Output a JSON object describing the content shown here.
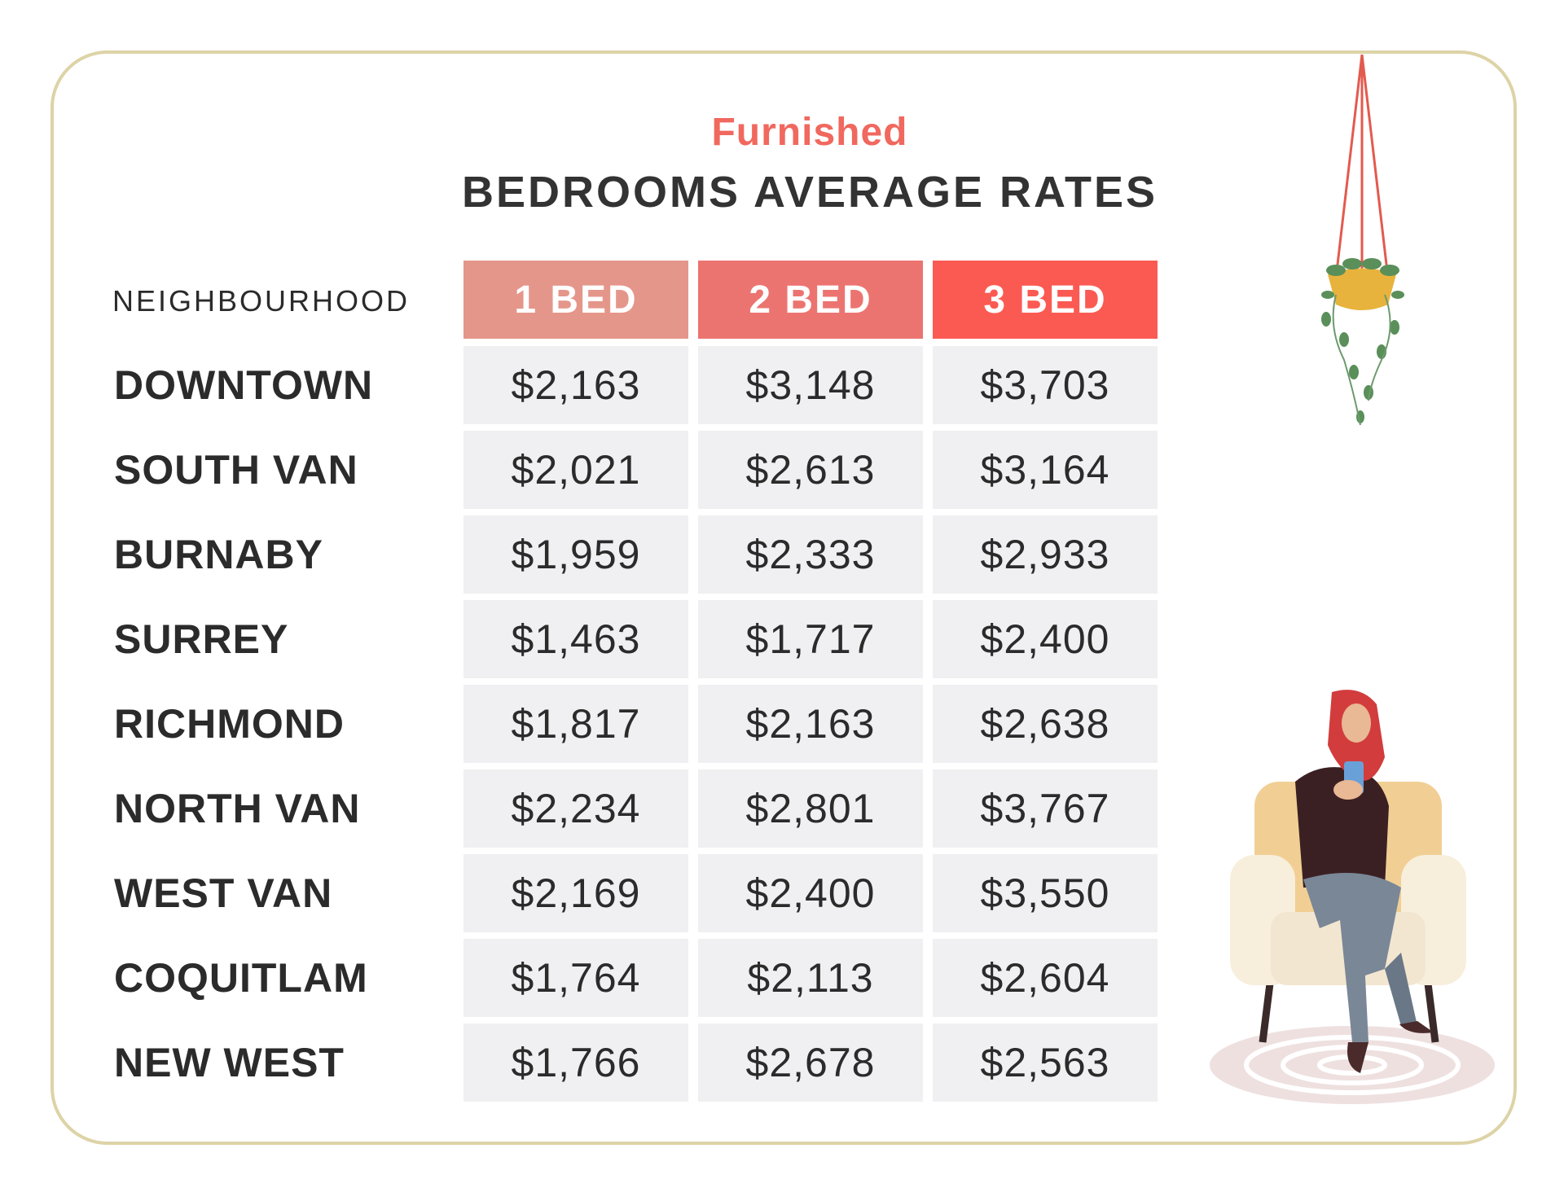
{
  "header": {
    "subtitle": "Furnished",
    "title": "BEDROOMS AVERAGE RATES"
  },
  "colors": {
    "subtitle": "#f0685e",
    "col_1bed": "#e5968a",
    "col_2bed": "#ec7470",
    "col_3bed": "#fb5a52",
    "cell_bg": "#f0f0f2",
    "border": "#ddd3a6"
  },
  "chart_data": {
    "type": "table",
    "row_header": "NEIGHBOURHOOD",
    "columns": [
      "1 BED",
      "2 BED",
      "3 BED"
    ],
    "rows": [
      {
        "name": "DOWNTOWN",
        "values": [
          "$2,163",
          "$3,148",
          "$3,703"
        ]
      },
      {
        "name": "SOUTH VAN",
        "values": [
          "$2,021",
          "$2,613",
          "$3,164"
        ]
      },
      {
        "name": "BURNABY",
        "values": [
          "$1,959",
          "$2,333",
          "$2,933"
        ]
      },
      {
        "name": "SURREY",
        "values": [
          "$1,463",
          "$1,717",
          "$2,400"
        ]
      },
      {
        "name": "RICHMOND",
        "values": [
          "$1,817",
          "$2,163",
          "$2,638"
        ]
      },
      {
        "name": "NORTH VAN",
        "values": [
          "$2,234",
          "$2,801",
          "$3,767"
        ]
      },
      {
        "name": "WEST VAN",
        "values": [
          "$2,169",
          "$2,400",
          "$3,550"
        ]
      },
      {
        "name": "COQUITLAM",
        "values": [
          "$1,764",
          "$2,113",
          "$2,604"
        ]
      },
      {
        "name": "NEW WEST",
        "values": [
          "$1,766",
          "$2,678",
          "$2,563"
        ]
      }
    ]
  },
  "illustrations": {
    "plant": "hanging-plant-icon",
    "person": "woman-in-armchair-icon"
  }
}
